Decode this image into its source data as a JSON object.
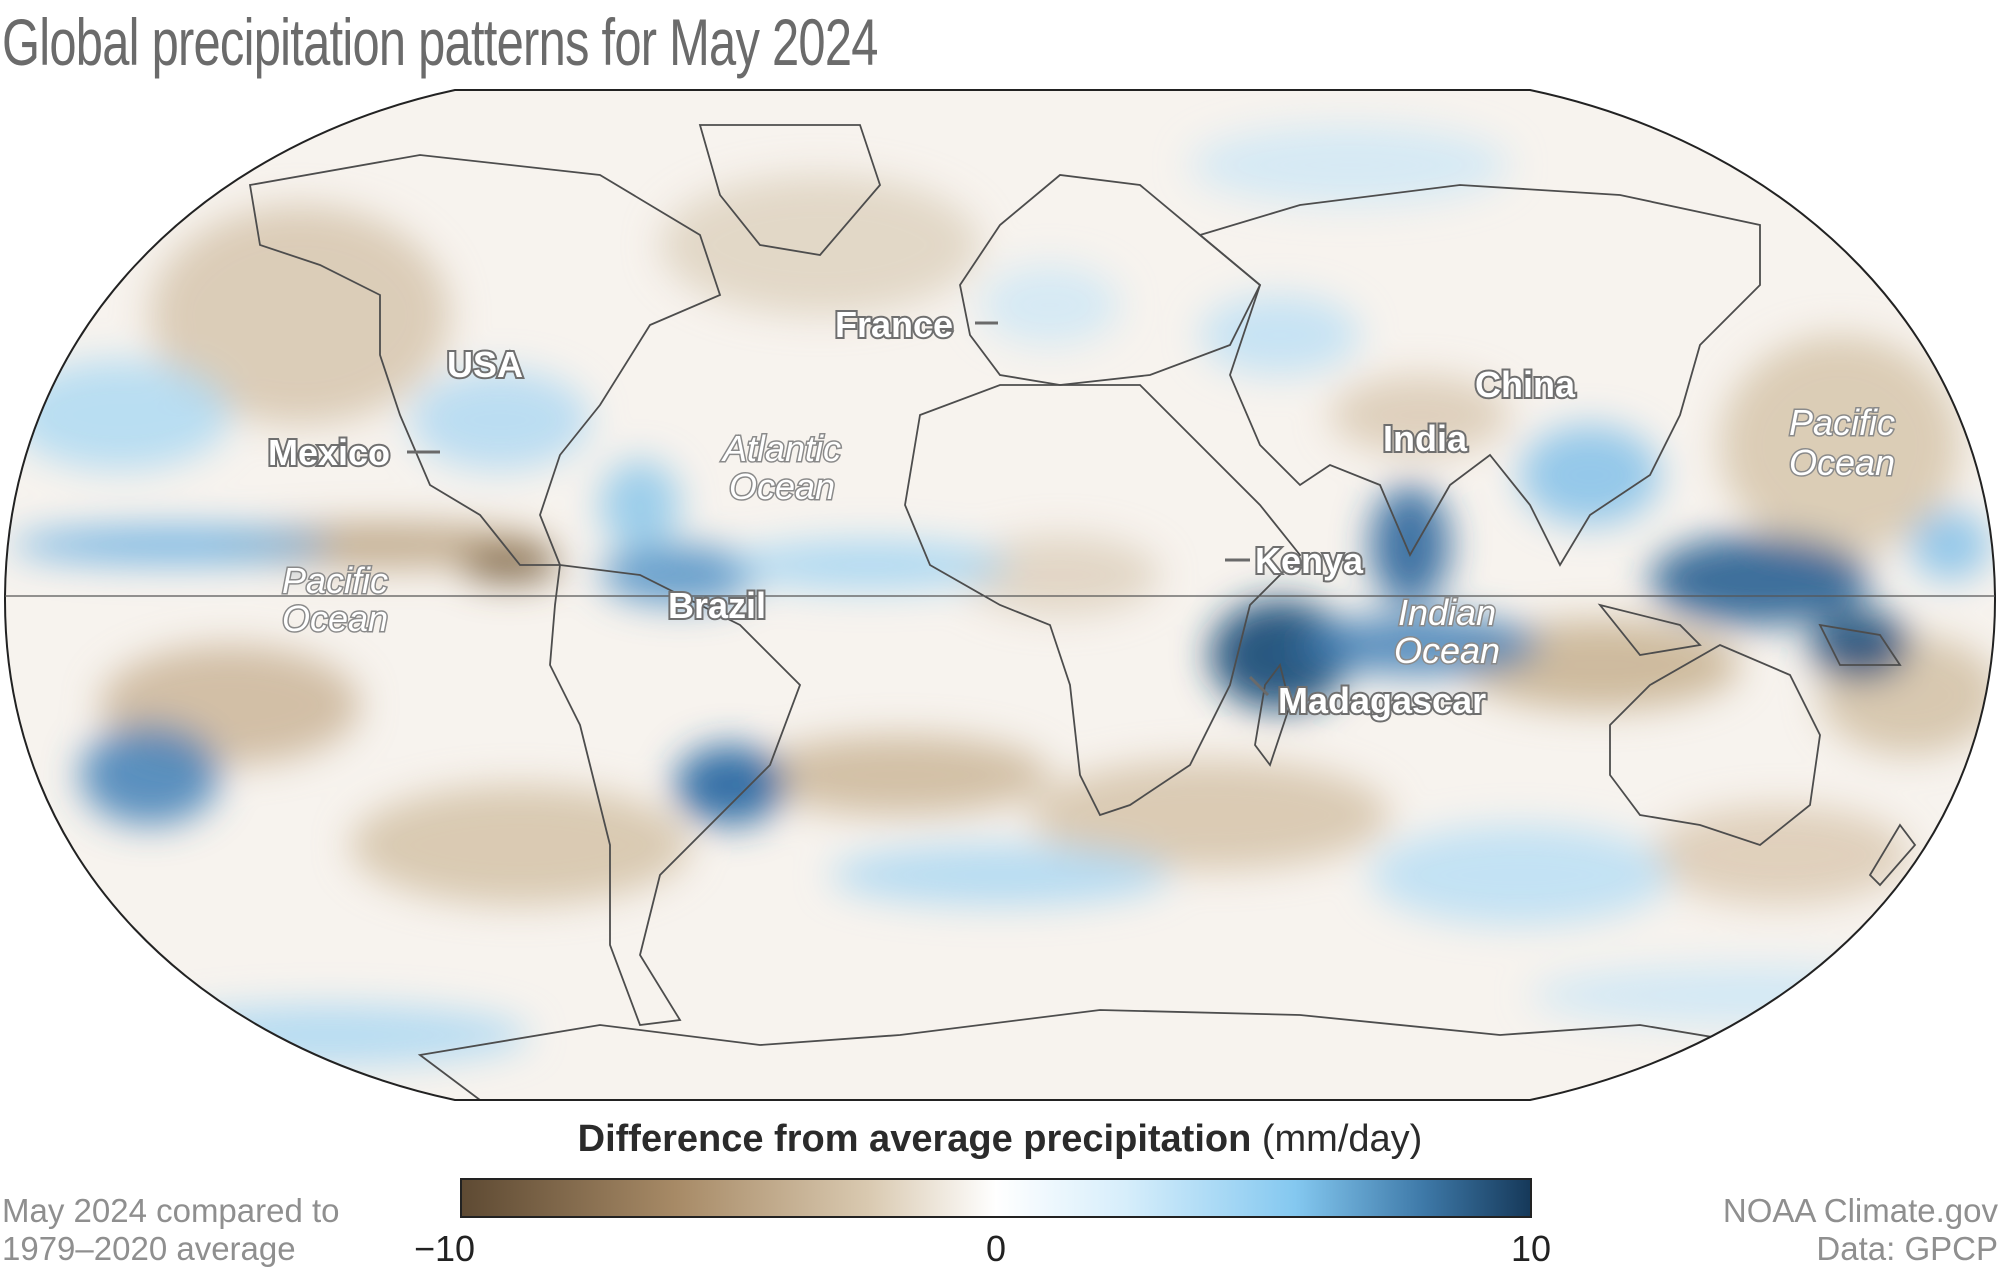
{
  "title": "Global precipitation patterns for May 2024",
  "map": {
    "projection": "robinson-like",
    "labels": {
      "france": "France",
      "usa": "USA",
      "mexico": "Mexico",
      "china": "China",
      "india": "India",
      "kenya": "Kenya",
      "brazil": "Brazil",
      "madagascar": "Madagascar"
    },
    "oceans": {
      "atlantic_1": "Atlantic",
      "atlantic_2": "Ocean",
      "pacific_west_1": "Pacific",
      "pacific_west_2": "Ocean",
      "pacific_east_1": "Pacific",
      "pacific_east_2": "Ocean",
      "indian_1": "Indian",
      "indian_2": "Ocean"
    }
  },
  "legend": {
    "title_bold": "Difference from average precipitation",
    "title_unit": "(mm/day)",
    "min_label": "−10",
    "mid_label": "0",
    "max_label": "10",
    "range": [
      -10,
      10
    ],
    "colors": {
      "dry_extreme": "#5e4a33",
      "dry": "#a78a66",
      "neutral": "#ffffff",
      "wet": "#84c8f0",
      "wet_extreme": "#16395a"
    }
  },
  "footnote_left": {
    "line1": "May 2024 compared to",
    "line2": "1979–2020 average"
  },
  "footnote_right": {
    "line1": "NOAA Climate.gov",
    "line2": "Data: GPCP"
  }
}
